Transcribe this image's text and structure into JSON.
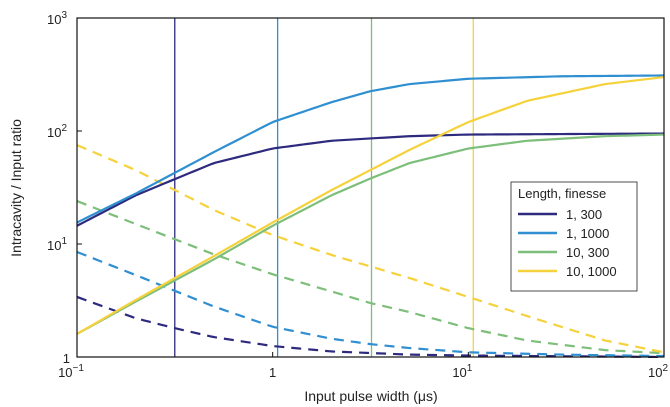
{
  "chart_data": {
    "type": "line",
    "xlabel": "Input pulse width (μs)",
    "ylabel": "Intracavity / Input ratio",
    "xscale": "log",
    "yscale": "log",
    "xlim": [
      0.1,
      100
    ],
    "ylim": [
      1,
      1000
    ],
    "grid": false,
    "legend_position": "right",
    "legend_title": "Length, finesse",
    "x_ticks": [
      {
        "value": 0.1,
        "base": "10",
        "exp": "−1"
      },
      {
        "value": 1,
        "base": "1",
        "exp": ""
      },
      {
        "value": 10,
        "base": "10",
        "exp": "1"
      },
      {
        "value": 100,
        "base": "10",
        "exp": "2"
      }
    ],
    "y_ticks": [
      {
        "value": 1,
        "base": "1",
        "exp": ""
      },
      {
        "value": 10,
        "base": "10",
        "exp": "1"
      },
      {
        "value": 100,
        "base": "10",
        "exp": "2"
      },
      {
        "value": 1000,
        "base": "10",
        "exp": "3"
      }
    ],
    "series": [
      {
        "name": "1, 300",
        "color": "#2e2a7e",
        "x": [
          0.1,
          0.2,
          0.316,
          0.5,
          1,
          2,
          5,
          10,
          100
        ],
        "solid": [
          14.5,
          27,
          37.5,
          52,
          70,
          82,
          90,
          93,
          95
        ],
        "dashed": [
          3.4,
          2.2,
          1.8,
          1.5,
          1.25,
          1.12,
          1.05,
          1.03,
          1.0
        ],
        "marker_x": 0.316
      },
      {
        "name": "1, 1000",
        "color": "#2f8fd1",
        "x": [
          0.1,
          0.2,
          0.5,
          1,
          2,
          3.16,
          5,
          10,
          30,
          100
        ],
        "solid": [
          15.5,
          28,
          65,
          120,
          180,
          225,
          260,
          290,
          305,
          310
        ],
        "dashed": [
          8.5,
          5.3,
          2.8,
          1.85,
          1.45,
          1.3,
          1.2,
          1.1,
          1.05,
          1.02
        ],
        "marker_x": 1.06
      },
      {
        "name": "10, 300",
        "color": "#7dbf7a",
        "x": [
          0.1,
          0.2,
          0.5,
          1,
          2,
          3.16,
          5,
          10,
          20,
          50,
          100
        ],
        "solid": [
          1.6,
          3.1,
          7.3,
          14.5,
          27,
          38,
          52,
          70,
          82,
          90,
          93
        ],
        "dashed": [
          24,
          15,
          8.1,
          5.4,
          3.8,
          3.0,
          2.5,
          1.8,
          1.4,
          1.15,
          1.08
        ],
        "marker_x": 3.2
      },
      {
        "name": "10, 1000",
        "color": "#f5d23b",
        "x": [
          0.1,
          0.2,
          0.5,
          1,
          2,
          5,
          10,
          20,
          50,
          100
        ],
        "solid": [
          1.6,
          3.2,
          7.8,
          15.5,
          30,
          68,
          120,
          185,
          260,
          300
        ],
        "dashed": [
          75,
          45,
          20,
          12,
          8,
          5,
          3.4,
          2.3,
          1.4,
          1.1
        ],
        "marker_x": 10.6
      }
    ]
  }
}
